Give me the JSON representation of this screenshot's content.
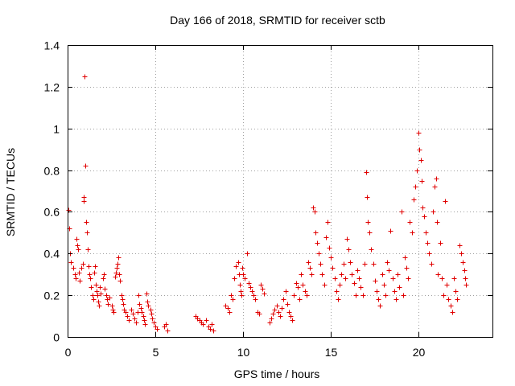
{
  "chart_data": {
    "type": "scatter",
    "title": "Day 166 of 2018, SRMTID for receiver sctb",
    "xlabel": "GPS time / hours",
    "ylabel": "SRMTID / TECUs",
    "xlim": [
      0,
      24.2
    ],
    "ylim": [
      0,
      1.4
    ],
    "xticks": [
      0,
      5,
      10,
      15,
      20
    ],
    "xtick_labels": [
      "0",
      "5",
      "10",
      "15",
      "20"
    ],
    "yticks": [
      0,
      0.2,
      0.4,
      0.6,
      0.8,
      1,
      1.2,
      1.4
    ],
    "ytick_labels": [
      "0",
      "0.2",
      "0.4",
      "0.6",
      "0.8",
      "1",
      "1.2",
      "1.4"
    ],
    "grid": true,
    "marker": "plus",
    "series": [
      {
        "name": "SRMTID",
        "color": "#e00000",
        "points": [
          [
            0.05,
            0.61
          ],
          [
            0.1,
            0.52
          ],
          [
            0.15,
            0.4
          ],
          [
            0.2,
            0.36
          ],
          [
            0.3,
            0.33
          ],
          [
            0.4,
            0.3
          ],
          [
            0.45,
            0.28
          ],
          [
            0.5,
            0.47
          ],
          [
            0.55,
            0.44
          ],
          [
            0.6,
            0.42
          ],
          [
            0.65,
            0.31
          ],
          [
            0.7,
            0.27
          ],
          [
            0.8,
            0.33
          ],
          [
            0.85,
            0.35
          ],
          [
            0.9,
            0.65
          ],
          [
            0.92,
            0.67
          ],
          [
            0.95,
            1.25
          ],
          [
            1.0,
            0.82
          ],
          [
            1.05,
            0.55
          ],
          [
            1.1,
            0.5
          ],
          [
            1.15,
            0.42
          ],
          [
            1.2,
            0.34
          ],
          [
            1.25,
            0.3
          ],
          [
            1.3,
            0.28
          ],
          [
            1.35,
            0.24
          ],
          [
            1.4,
            0.2
          ],
          [
            1.45,
            0.18
          ],
          [
            1.5,
            0.31
          ],
          [
            1.55,
            0.34
          ],
          [
            1.6,
            0.25
          ],
          [
            1.65,
            0.22
          ],
          [
            1.7,
            0.2
          ],
          [
            1.75,
            0.17
          ],
          [
            1.8,
            0.15
          ],
          [
            1.85,
            0.24
          ],
          [
            1.9,
            0.21
          ],
          [
            2.0,
            0.28
          ],
          [
            2.05,
            0.3
          ],
          [
            2.1,
            0.23
          ],
          [
            2.2,
            0.2
          ],
          [
            2.25,
            0.18
          ],
          [
            2.3,
            0.16
          ],
          [
            2.4,
            0.19
          ],
          [
            2.5,
            0.15
          ],
          [
            2.55,
            0.13
          ],
          [
            2.6,
            0.12
          ],
          [
            2.7,
            0.29
          ],
          [
            2.75,
            0.31
          ],
          [
            2.8,
            0.33
          ],
          [
            2.85,
            0.35
          ],
          [
            2.9,
            0.38
          ],
          [
            2.95,
            0.3
          ],
          [
            3.0,
            0.27
          ],
          [
            3.05,
            0.2
          ],
          [
            3.1,
            0.18
          ],
          [
            3.15,
            0.16
          ],
          [
            3.2,
            0.13
          ],
          [
            3.3,
            0.12
          ],
          [
            3.4,
            0.1
          ],
          [
            3.5,
            0.08
          ],
          [
            3.6,
            0.13
          ],
          [
            3.7,
            0.11
          ],
          [
            3.8,
            0.09
          ],
          [
            3.9,
            0.07
          ],
          [
            4.0,
            0.12
          ],
          [
            4.05,
            0.2
          ],
          [
            4.1,
            0.16
          ],
          [
            4.15,
            0.14
          ],
          [
            4.2,
            0.12
          ],
          [
            4.3,
            0.1
          ],
          [
            4.35,
            0.08
          ],
          [
            4.4,
            0.06
          ],
          [
            4.5,
            0.21
          ],
          [
            4.55,
            0.17
          ],
          [
            4.6,
            0.15
          ],
          [
            4.7,
            0.13
          ],
          [
            4.75,
            0.11
          ],
          [
            4.8,
            0.09
          ],
          [
            4.9,
            0.07
          ],
          [
            5.0,
            0.05
          ],
          [
            5.1,
            0.04
          ],
          [
            5.5,
            0.05
          ],
          [
            5.6,
            0.06
          ],
          [
            5.7,
            0.03
          ],
          [
            7.3,
            0.1
          ],
          [
            7.4,
            0.09
          ],
          [
            7.5,
            0.08
          ],
          [
            7.6,
            0.07
          ],
          [
            7.7,
            0.06
          ],
          [
            7.9,
            0.08
          ],
          [
            8.0,
            0.05
          ],
          [
            8.1,
            0.04
          ],
          [
            8.2,
            0.06
          ],
          [
            8.3,
            0.03
          ],
          [
            9.0,
            0.15
          ],
          [
            9.1,
            0.14
          ],
          [
            9.2,
            0.12
          ],
          [
            9.3,
            0.2
          ],
          [
            9.4,
            0.18
          ],
          [
            9.5,
            0.28
          ],
          [
            9.6,
            0.34
          ],
          [
            9.7,
            0.36
          ],
          [
            9.75,
            0.3
          ],
          [
            9.8,
            0.25
          ],
          [
            9.85,
            0.22
          ],
          [
            9.9,
            0.2
          ],
          [
            9.95,
            0.33
          ],
          [
            10.0,
            0.3
          ],
          [
            10.1,
            0.28
          ],
          [
            10.2,
            0.4
          ],
          [
            10.3,
            0.26
          ],
          [
            10.4,
            0.24
          ],
          [
            10.5,
            0.22
          ],
          [
            10.6,
            0.2
          ],
          [
            10.7,
            0.18
          ],
          [
            10.8,
            0.12
          ],
          [
            10.9,
            0.11
          ],
          [
            11.0,
            0.25
          ],
          [
            11.1,
            0.23
          ],
          [
            11.2,
            0.21
          ],
          [
            11.5,
            0.07
          ],
          [
            11.6,
            0.09
          ],
          [
            11.7,
            0.11
          ],
          [
            11.8,
            0.13
          ],
          [
            11.9,
            0.15
          ],
          [
            12.0,
            0.12
          ],
          [
            12.1,
            0.1
          ],
          [
            12.2,
            0.14
          ],
          [
            12.3,
            0.18
          ],
          [
            12.4,
            0.22
          ],
          [
            12.5,
            0.16
          ],
          [
            12.6,
            0.12
          ],
          [
            12.7,
            0.1
          ],
          [
            12.8,
            0.08
          ],
          [
            12.9,
            0.2
          ],
          [
            13.0,
            0.26
          ],
          [
            13.1,
            0.24
          ],
          [
            13.2,
            0.18
          ],
          [
            13.3,
            0.3
          ],
          [
            13.4,
            0.25
          ],
          [
            13.5,
            0.22
          ],
          [
            13.6,
            0.2
          ],
          [
            13.7,
            0.36
          ],
          [
            13.8,
            0.33
          ],
          [
            13.9,
            0.3
          ],
          [
            14.0,
            0.62
          ],
          [
            14.05,
            0.6
          ],
          [
            14.1,
            0.5
          ],
          [
            14.2,
            0.45
          ],
          [
            14.3,
            0.4
          ],
          [
            14.4,
            0.35
          ],
          [
            14.5,
            0.3
          ],
          [
            14.6,
            0.25
          ],
          [
            14.7,
            0.48
          ],
          [
            14.8,
            0.55
          ],
          [
            14.9,
            0.43
          ],
          [
            15.0,
            0.38
          ],
          [
            15.1,
            0.33
          ],
          [
            15.2,
            0.28
          ],
          [
            15.3,
            0.22
          ],
          [
            15.4,
            0.18
          ],
          [
            15.5,
            0.25
          ],
          [
            15.6,
            0.3
          ],
          [
            15.7,
            0.35
          ],
          [
            15.8,
            0.28
          ],
          [
            15.9,
            0.47
          ],
          [
            16.0,
            0.42
          ],
          [
            16.1,
            0.36
          ],
          [
            16.2,
            0.3
          ],
          [
            16.3,
            0.26
          ],
          [
            16.4,
            0.2
          ],
          [
            16.5,
            0.32
          ],
          [
            16.6,
            0.28
          ],
          [
            16.7,
            0.24
          ],
          [
            16.8,
            0.2
          ],
          [
            16.9,
            0.35
          ],
          [
            17.0,
            0.79
          ],
          [
            17.05,
            0.67
          ],
          [
            17.1,
            0.55
          ],
          [
            17.2,
            0.5
          ],
          [
            17.3,
            0.42
          ],
          [
            17.4,
            0.35
          ],
          [
            17.5,
            0.27
          ],
          [
            17.6,
            0.22
          ],
          [
            17.7,
            0.18
          ],
          [
            17.8,
            0.15
          ],
          [
            17.9,
            0.3
          ],
          [
            18.0,
            0.25
          ],
          [
            18.1,
            0.2
          ],
          [
            18.2,
            0.36
          ],
          [
            18.3,
            0.32
          ],
          [
            18.4,
            0.51
          ],
          [
            18.5,
            0.28
          ],
          [
            18.6,
            0.22
          ],
          [
            18.7,
            0.18
          ],
          [
            18.8,
            0.3
          ],
          [
            18.9,
            0.24
          ],
          [
            19.0,
            0.6
          ],
          [
            19.1,
            0.2
          ],
          [
            19.2,
            0.38
          ],
          [
            19.3,
            0.33
          ],
          [
            19.4,
            0.28
          ],
          [
            19.5,
            0.55
          ],
          [
            19.6,
            0.5
          ],
          [
            19.7,
            0.66
          ],
          [
            19.8,
            0.72
          ],
          [
            19.9,
            0.8
          ],
          [
            20.0,
            0.98
          ],
          [
            20.05,
            0.9
          ],
          [
            20.1,
            0.85
          ],
          [
            20.15,
            0.75
          ],
          [
            20.2,
            0.62
          ],
          [
            20.3,
            0.58
          ],
          [
            20.4,
            0.5
          ],
          [
            20.5,
            0.45
          ],
          [
            20.6,
            0.4
          ],
          [
            20.7,
            0.35
          ],
          [
            20.8,
            0.6
          ],
          [
            20.9,
            0.72
          ],
          [
            21.0,
            0.76
          ],
          [
            21.05,
            0.55
          ],
          [
            21.1,
            0.3
          ],
          [
            21.2,
            0.45
          ],
          [
            21.3,
            0.28
          ],
          [
            21.4,
            0.2
          ],
          [
            21.5,
            0.65
          ],
          [
            21.6,
            0.25
          ],
          [
            21.7,
            0.18
          ],
          [
            21.8,
            0.15
          ],
          [
            21.9,
            0.12
          ],
          [
            22.0,
            0.28
          ],
          [
            22.1,
            0.22
          ],
          [
            22.2,
            0.18
          ],
          [
            22.3,
            0.44
          ],
          [
            22.4,
            0.4
          ],
          [
            22.5,
            0.36
          ],
          [
            22.6,
            0.32
          ],
          [
            22.65,
            0.28
          ],
          [
            22.7,
            0.25
          ]
        ]
      }
    ]
  }
}
